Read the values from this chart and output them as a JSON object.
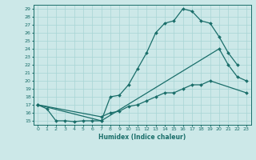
{
  "title": "",
  "xlabel": "Humidex (Indice chaleur)",
  "bg_color": "#cce8e8",
  "line_color": "#1a6e6a",
  "grid_color": "#a8d4d4",
  "xlim": [
    -0.5,
    23.5
  ],
  "ylim": [
    14.5,
    29.5
  ],
  "xticks": [
    0,
    1,
    2,
    3,
    4,
    5,
    6,
    7,
    8,
    9,
    10,
    11,
    12,
    13,
    14,
    15,
    16,
    17,
    18,
    19,
    20,
    21,
    22,
    23
  ],
  "yticks": [
    15,
    16,
    17,
    18,
    19,
    20,
    21,
    22,
    23,
    24,
    25,
    26,
    27,
    28,
    29
  ],
  "series": [
    {
      "x": [
        0,
        1,
        2,
        3,
        4,
        5,
        6,
        7,
        8,
        9,
        10,
        11,
        12,
        13,
        14,
        15,
        16,
        17,
        18,
        19,
        20,
        21,
        22
      ],
      "y": [
        17,
        16.5,
        15,
        15,
        14.9,
        15,
        15,
        15,
        18,
        18.2,
        19.5,
        21.5,
        23.5,
        26,
        27.2,
        27.5,
        29,
        28.7,
        27.5,
        27.2,
        25.5,
        23.5,
        22
      ]
    },
    {
      "x": [
        0,
        7,
        20,
        21,
        22,
        23
      ],
      "y": [
        17,
        15,
        24,
        22,
        20.5,
        20
      ]
    },
    {
      "x": [
        0,
        7,
        8,
        9,
        10,
        11,
        12,
        13,
        14,
        15,
        16,
        17,
        18,
        19,
        23
      ],
      "y": [
        17,
        15.5,
        16,
        16.2,
        16.8,
        17,
        17.5,
        18,
        18.5,
        18.5,
        19,
        19.5,
        19.5,
        20,
        18.5
      ]
    }
  ]
}
